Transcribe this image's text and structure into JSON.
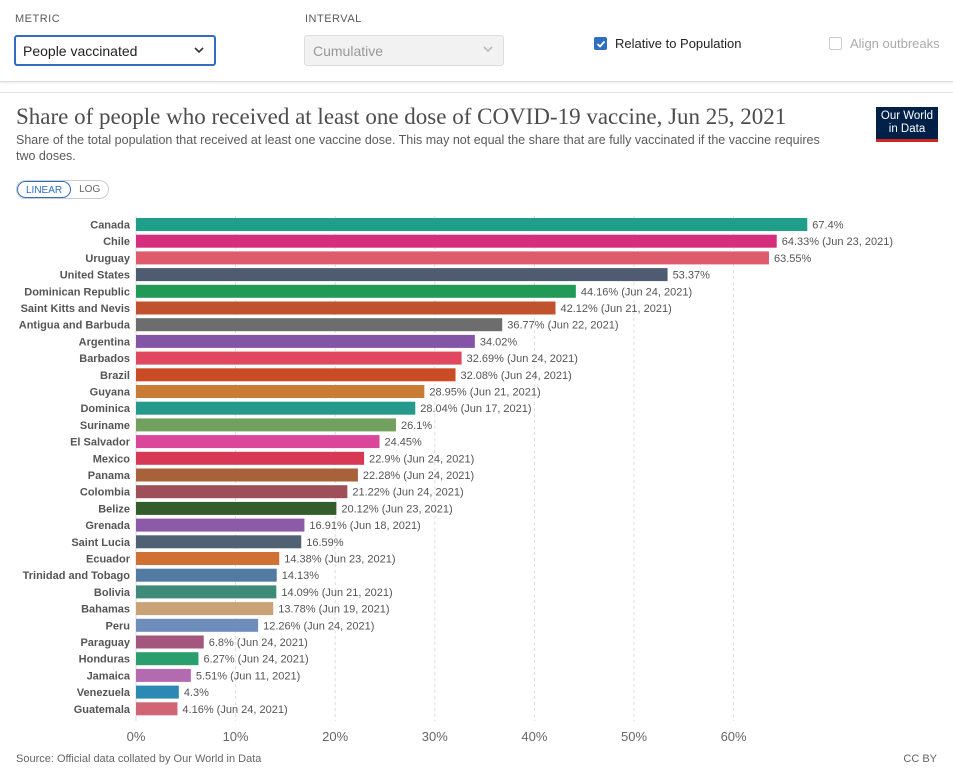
{
  "controls": {
    "metric_label": "METRIC",
    "metric_value": "People vaccinated",
    "interval_label": "INTERVAL",
    "interval_value": "Cumulative",
    "relative_label": "Relative to Population",
    "align_label": "Align outbreaks"
  },
  "header": {
    "title": "Share of people who received at least one dose of COVID-19 vaccine, Jun 25, 2021",
    "subtitle": "Share of the total population that received at least one vaccine dose. This may not equal the share that are fully vaccinated if the vaccine requires two doses.",
    "logo_line1": "Our World",
    "logo_line2": "in Data"
  },
  "scale": {
    "linear": "LINEAR",
    "log": "LOG"
  },
  "footer": {
    "source": "Source: Official data collated by Our World in Data",
    "license": "CC BY"
  },
  "chart_data": {
    "type": "bar",
    "orientation": "horizontal",
    "title": "Share of people who received at least one dose of COVID-19 vaccine, Jun 25, 2021",
    "xlim": [
      0,
      70
    ],
    "x_ticks": [
      "0%",
      "10%",
      "20%",
      "30%",
      "40%",
      "50%",
      "60%"
    ],
    "grid": true,
    "categories": [
      "Canada",
      "Chile",
      "Uruguay",
      "United States",
      "Dominican Republic",
      "Saint Kitts and Nevis",
      "Antigua and Barbuda",
      "Argentina",
      "Barbados",
      "Brazil",
      "Guyana",
      "Dominica",
      "Suriname",
      "El Salvador",
      "Mexico",
      "Panama",
      "Colombia",
      "Belize",
      "Grenada",
      "Saint Lucia",
      "Ecuador",
      "Trinidad and Tobago",
      "Bolivia",
      "Bahamas",
      "Peru",
      "Paraguay",
      "Honduras",
      "Jamaica",
      "Venezuela",
      "Guatemala"
    ],
    "values": [
      67.4,
      64.33,
      63.55,
      53.37,
      44.16,
      42.12,
      36.77,
      34.02,
      32.69,
      32.08,
      28.95,
      28.04,
      26.1,
      24.45,
      22.9,
      22.28,
      21.22,
      20.12,
      16.91,
      16.59,
      14.38,
      14.13,
      14.09,
      13.78,
      12.26,
      6.8,
      6.27,
      5.51,
      4.3,
      4.16
    ],
    "labels": [
      "67.4%",
      "64.33% (Jun 23, 2021)",
      "63.55%",
      "53.37%",
      "44.16% (Jun 24, 2021)",
      "42.12% (Jun 21, 2021)",
      "36.77% (Jun 22, 2021)",
      "34.02%",
      "32.69% (Jun 24, 2021)",
      "32.08% (Jun 24, 2021)",
      "28.95% (Jun 21, 2021)",
      "28.04% (Jun 17, 2021)",
      "26.1%",
      "24.45%",
      "22.9% (Jun 24, 2021)",
      "22.28% (Jun 24, 2021)",
      "21.22% (Jun 24, 2021)",
      "20.12% (Jun 23, 2021)",
      "16.91% (Jun 18, 2021)",
      "16.59%",
      "14.38% (Jun 23, 2021)",
      "14.13%",
      "14.09% (Jun 21, 2021)",
      "13.78% (Jun 19, 2021)",
      "12.26% (Jun 24, 2021)",
      "6.8% (Jun 24, 2021)",
      "6.27% (Jun 24, 2021)",
      "5.51% (Jun 11, 2021)",
      "4.3%",
      "4.16% (Jun 24, 2021)"
    ],
    "colors": [
      "#1f9e89",
      "#d62e7c",
      "#de5b6d",
      "#4f5b70",
      "#219a57",
      "#c0522e",
      "#6d6d6d",
      "#8454a6",
      "#e04860",
      "#c94c26",
      "#c97c36",
      "#24998c",
      "#72a05e",
      "#d9469a",
      "#d63855",
      "#a7623a",
      "#9e4f5a",
      "#335e2c",
      "#8d5aa8",
      "#4f6173",
      "#d07032",
      "#537aa1",
      "#3f8a79",
      "#c9a277",
      "#6e8dbb",
      "#a4577c",
      "#2b9e6e",
      "#b46ab0",
      "#2b8ab3",
      "#cf6575"
    ]
  }
}
